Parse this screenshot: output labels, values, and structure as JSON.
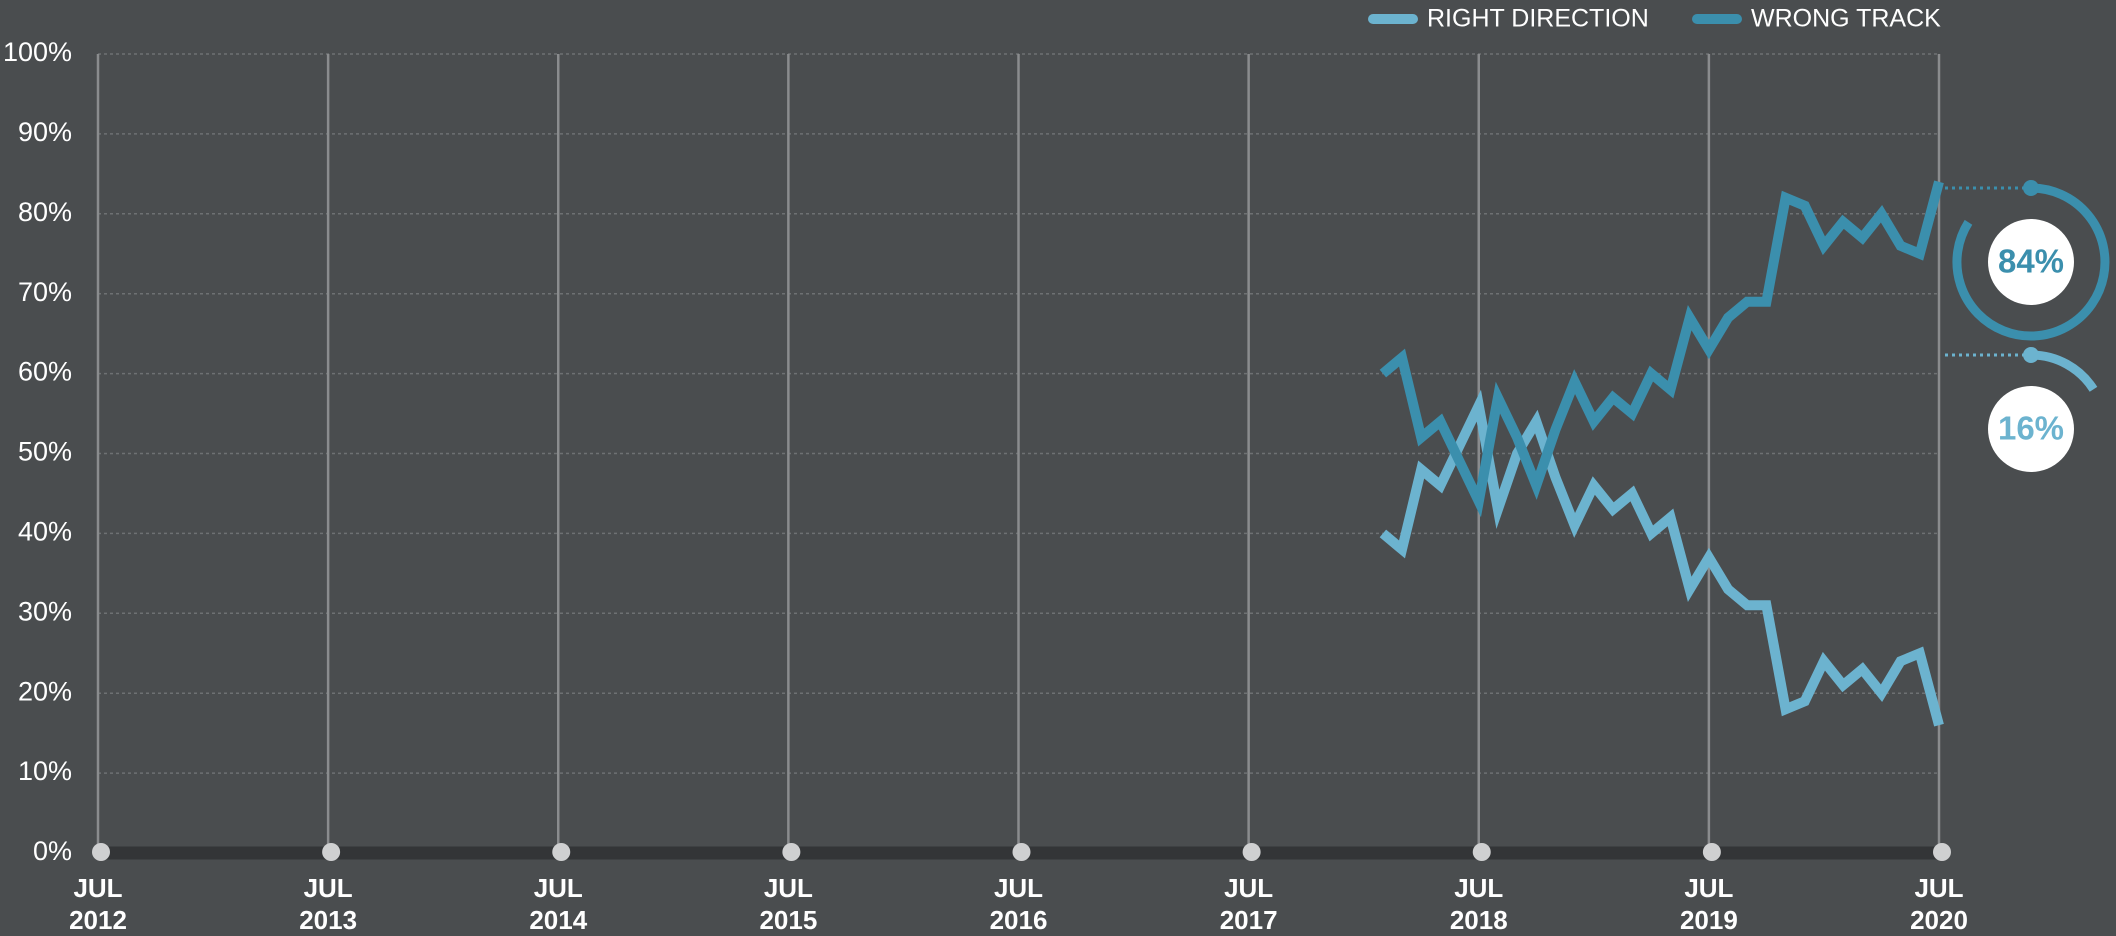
{
  "chart_data": {
    "type": "line",
    "x": [
      "2018-02",
      "2018-03",
      "2018-04",
      "2018-05",
      "2018-06",
      "2018-07",
      "2018-08",
      "2018-09",
      "2018-10",
      "2018-11",
      "2018-12",
      "2019-01",
      "2019-02",
      "2019-03",
      "2019-04",
      "2019-05",
      "2019-06",
      "2019-07",
      "2019-08",
      "2019-09",
      "2019-10",
      "2019-11",
      "2019-12",
      "2020-01",
      "2020-02",
      "2020-03",
      "2020-04",
      "2020-05",
      "2020-06",
      "2020-07"
    ],
    "series": [
      {
        "name": "RIGHT DIRECTION",
        "color": "#6cb3cf",
        "values": [
          40,
          38,
          48,
          46,
          51,
          56,
          43,
          50,
          54,
          47,
          41,
          46,
          43,
          45,
          40,
          42,
          33,
          37,
          33,
          31,
          31,
          18,
          19,
          24,
          21,
          23,
          20,
          24,
          25,
          16
        ],
        "value_labels": [
          null,
          null,
          null,
          null,
          null,
          null,
          null,
          null,
          null,
          null,
          null,
          null,
          null,
          null,
          null,
          null,
          null,
          null,
          null,
          null,
          null,
          null,
          null,
          null,
          null,
          null,
          null,
          null,
          null,
          "16%"
        ]
      },
      {
        "name": "WRONG TRACK",
        "color": "#3b8fad",
        "values": [
          60,
          62,
          52,
          54,
          49,
          44,
          57,
          52,
          46,
          53,
          59,
          54,
          57,
          55,
          60,
          58,
          67,
          63,
          67,
          69,
          69,
          82,
          81,
          76,
          79,
          77,
          80,
          76,
          75,
          84
        ],
        "value_labels": [
          null,
          null,
          null,
          null,
          null,
          null,
          null,
          null,
          null,
          null,
          null,
          null,
          null,
          null,
          null,
          null,
          null,
          null,
          null,
          null,
          null,
          null,
          null,
          null,
          null,
          null,
          null,
          null,
          null,
          "84%"
        ]
      }
    ],
    "xlim": [
      "2012-07",
      "2020-07"
    ],
    "xticks": [
      {
        "value": "2012-07",
        "label": "JUL 2012"
      },
      {
        "value": "2013-07",
        "label": "JUL 2013"
      },
      {
        "value": "2014-07",
        "label": "JUL 2014"
      },
      {
        "value": "2015-07",
        "label": "JUL 2015"
      },
      {
        "value": "2016-07",
        "label": "JUL 2016"
      },
      {
        "value": "2017-07",
        "label": "JUL 2017"
      },
      {
        "value": "2018-07",
        "label": "JUL 2018"
      },
      {
        "value": "2019-07",
        "label": "JUL 2019"
      },
      {
        "value": "2020-07",
        "label": "JUL 2020"
      }
    ],
    "ylim": [
      0,
      100
    ],
    "yticks": [
      {
        "value": 0,
        "label": "0%"
      },
      {
        "value": 10,
        "label": "10%"
      },
      {
        "value": 20,
        "label": "20%"
      },
      {
        "value": 30,
        "label": "30%"
      },
      {
        "value": 40,
        "label": "40%"
      },
      {
        "value": 50,
        "label": "50%"
      },
      {
        "value": 60,
        "label": "60%"
      },
      {
        "value": 70,
        "label": "70%"
      },
      {
        "value": 80,
        "label": "80%"
      },
      {
        "value": 90,
        "label": "90%"
      },
      {
        "value": 100,
        "label": "100%"
      }
    ],
    "grid": true,
    "legend": "top"
  }
}
